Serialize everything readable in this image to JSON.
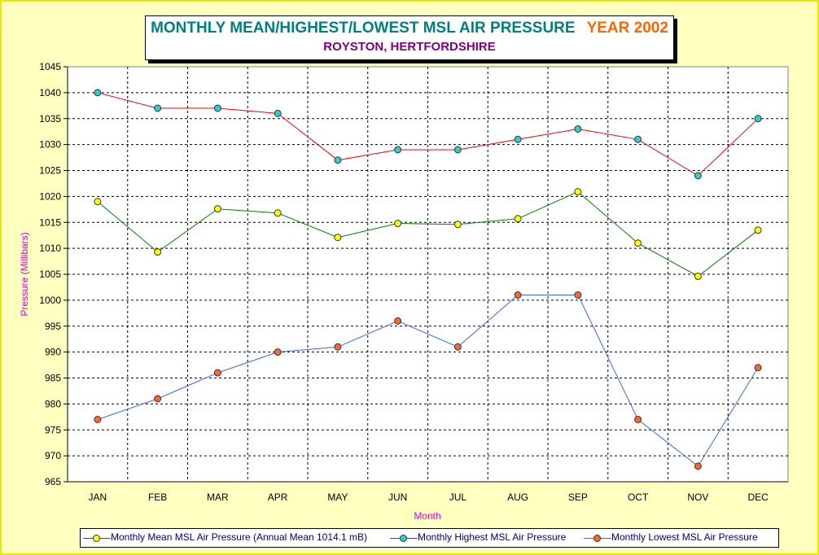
{
  "colors": {
    "mean_line": "#008000",
    "mean_marker": "#ffff00",
    "high_line": "#ff0000",
    "high_marker": "#33cccc",
    "low_line": "#3366ff",
    "low_marker": "#ff6633"
  },
  "chart_data": {
    "type": "line",
    "title": "MONTHLY MEAN/HIGHEST/LOWEST MSL AIR PRESSURE",
    "title_year": "YEAR 2002",
    "subtitle": "ROYSTON, HERTFORDSHIRE",
    "xlabel": "Month",
    "ylabel": "Pressure (Millibars)",
    "ylim": [
      965,
      1045
    ],
    "ytick_step": 5,
    "grid": true,
    "legend_position": "bottom",
    "categories": [
      "JAN",
      "FEB",
      "MAR",
      "APR",
      "MAY",
      "JUN",
      "JUL",
      "AUG",
      "SEP",
      "OCT",
      "NOV",
      "DEC"
    ],
    "series": [
      {
        "name": "Monthly Mean MSL Air Pressure (Annual Mean 1014.1 mB)",
        "values": [
          1019,
          1009.3,
          1017.6,
          1016.8,
          1012.1,
          1014.8,
          1014.6,
          1015.7,
          1020.9,
          1011,
          1004.6,
          1013.5
        ]
      },
      {
        "name": "Monthly Highest MSL Air Pressure",
        "values": [
          1040,
          1037,
          1037,
          1036,
          1027,
          1029,
          1029,
          1031,
          1033,
          1031,
          1024,
          1035
        ]
      },
      {
        "name": "Monthly Lowest MSL Air Pressure",
        "values": [
          977,
          981,
          986,
          990,
          991,
          996,
          991,
          1001,
          1001,
          977,
          968,
          987
        ]
      }
    ]
  }
}
